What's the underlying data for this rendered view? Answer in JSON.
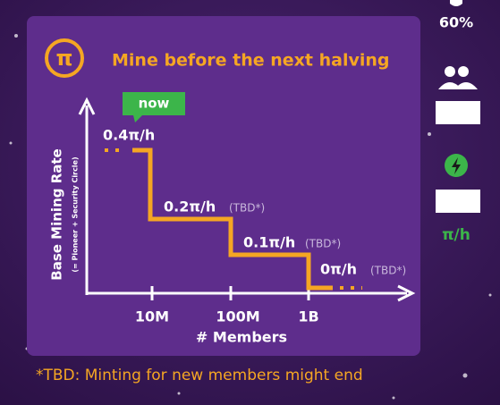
{
  "card": {
    "title": "Mine before the next halving",
    "y_label": "Base Mining Rate",
    "y_sublabel": "(= Pioneer + Security Circle)",
    "now_badge": "now",
    "steps": [
      {
        "rate": "0.4π/h"
      },
      {
        "rate": "0.2π/h",
        "note": "(TBD*)"
      },
      {
        "rate": "0.1π/h",
        "note": "(TBD*)"
      },
      {
        "rate": "0π/h",
        "note": "(TBD*)"
      }
    ],
    "x_ticks": [
      "10M",
      "100M",
      "1B"
    ],
    "x_label": "# Members"
  },
  "footnote": "*TBD: Minting for new members might end",
  "sidebar": {
    "battery": "60%",
    "rate_unit": "π/h"
  }
}
